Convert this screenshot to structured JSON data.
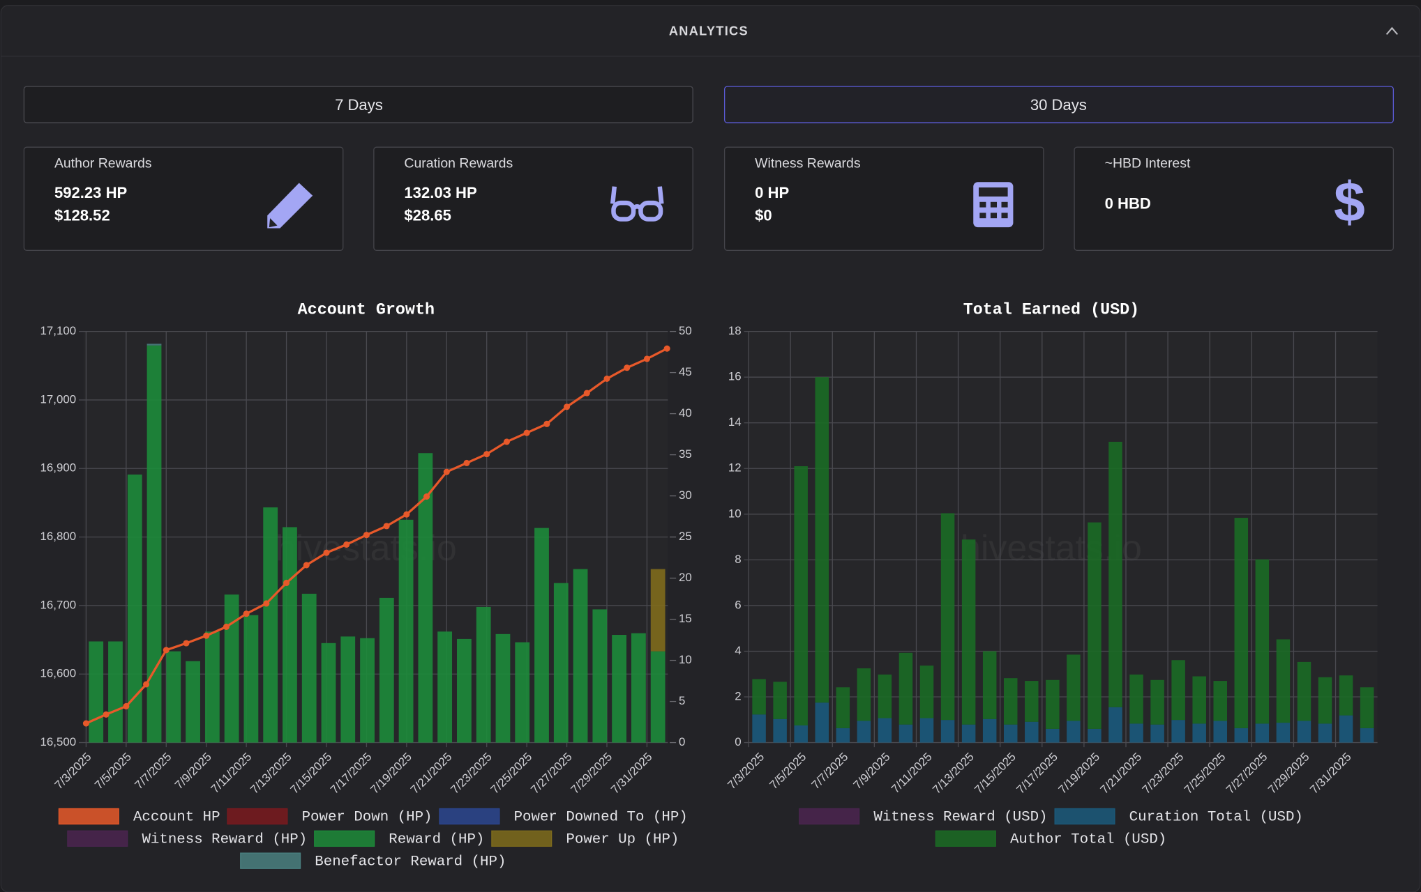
{
  "header": {
    "title": "ANALYTICS"
  },
  "tabs": [
    "7 Days",
    "30 Days"
  ],
  "cards": [
    {
      "label": "Author Rewards",
      "lines": [
        "592.23 HP",
        "$128.52"
      ]
    },
    {
      "label": "Curation Rewards",
      "lines": [
        "132.03 HP",
        "$28.65"
      ]
    },
    {
      "label": "Witness Rewards",
      "lines": [
        "0 HP",
        "$0"
      ]
    },
    {
      "label": "~HBD Interest",
      "lines": [
        "0 HBD"
      ]
    }
  ],
  "watermark": "hivestats.io",
  "chart_data": [
    {
      "type": "combo",
      "title": "Account Growth",
      "categories": [
        "7/3/2025",
        null,
        "7/5/2025",
        null,
        "7/7/2025",
        null,
        "7/9/2025",
        null,
        "7/11/2025",
        null,
        "7/13/2025",
        null,
        "7/15/2025",
        null,
        "7/17/2025",
        null,
        "7/19/2025",
        null,
        "7/21/2025",
        null,
        "7/23/2025",
        null,
        "7/25/2025",
        null,
        "7/27/2025",
        null,
        "7/29/2025",
        null,
        "7/31/2025",
        null
      ],
      "ylim": [
        16500,
        17100
      ],
      "yticks": [
        {
          "value": 16500,
          "label": "16,500"
        },
        {
          "value": 16600,
          "label": "16,600"
        },
        {
          "value": 16700,
          "label": "16,700"
        },
        {
          "value": 16800,
          "label": "16,800"
        },
        {
          "value": 16900,
          "label": "16,900"
        },
        {
          "value": 17000,
          "label": "17,000"
        },
        {
          "value": 17100,
          "label": "17,100"
        }
      ],
      "y2lim": [
        0,
        50
      ],
      "y2ticks": [
        0,
        5,
        10,
        15,
        20,
        25,
        30,
        35,
        40,
        45,
        50
      ],
      "grid": true,
      "legend": "bottom",
      "series": [
        {
          "name": "Account HP",
          "kind": "line",
          "color": "#e8592a",
          "values": [
            16528,
            16541,
            16553,
            16585,
            16635,
            16645,
            16656,
            16669,
            16688,
            16703,
            16733,
            16759,
            16777,
            16789,
            16803,
            16816,
            16833,
            16859,
            16895,
            16908,
            16921,
            16939,
            16952,
            16965,
            16990,
            17010,
            17031,
            17047,
            17060,
            17075
          ]
        },
        {
          "name": "Power Down (HP)",
          "kind": "bar",
          "axis": "y2",
          "color": "#7a1a1f",
          "values": [
            0,
            0,
            0,
            0,
            0,
            0,
            0,
            0,
            0,
            0,
            0,
            0,
            0,
            0,
            0,
            0,
            0,
            0,
            0,
            0,
            0,
            0,
            0,
            0,
            0,
            0,
            0,
            0,
            0,
            0
          ]
        },
        {
          "name": "Power Downed To (HP)",
          "kind": "bar",
          "axis": "y2",
          "color": "#2c4690",
          "values": [
            0,
            0,
            0,
            0,
            0,
            0,
            0,
            0,
            0,
            0,
            0,
            0,
            0,
            0,
            0,
            0,
            0,
            0,
            0,
            0,
            0,
            0,
            0,
            0,
            0,
            0,
            0,
            0,
            0,
            0
          ]
        },
        {
          "name": "Witness Reward (HP)",
          "kind": "bar",
          "axis": "y2",
          "color": "#4b2550",
          "values": [
            0,
            0,
            0,
            0,
            0,
            0,
            0,
            0,
            0,
            0,
            0,
            0,
            0,
            0,
            0,
            0,
            0,
            0,
            0,
            0,
            0,
            0,
            0,
            0,
            0,
            0,
            0,
            0,
            0,
            0
          ]
        },
        {
          "name": "Reward (HP)",
          "kind": "bar",
          "axis": "y2",
          "color": "#1d8b3a",
          "values": [
            12.3,
            12.3,
            32.6,
            48.3,
            11.1,
            9.9,
            13.5,
            18.0,
            15.5,
            28.6,
            26.2,
            18.1,
            12.1,
            12.9,
            12.7,
            17.6,
            27.1,
            35.2,
            13.5,
            12.6,
            16.5,
            13.2,
            12.2,
            26.1,
            19.4,
            21.1,
            16.2,
            13.1,
            13.3,
            11.1
          ]
        },
        {
          "name": "Power Up (HP)",
          "kind": "bar",
          "axis": "y2",
          "color": "#7f6c1c",
          "values": [
            0,
            0,
            0,
            0,
            0,
            0,
            0,
            0,
            0,
            0,
            0,
            0,
            0,
            0,
            0,
            0,
            0,
            0,
            0,
            0,
            0,
            0,
            0,
            0,
            0,
            0,
            0,
            0,
            0,
            10.0
          ]
        },
        {
          "name": "Benefactor Reward (HP)",
          "kind": "bar",
          "axis": "y2",
          "color": "#4a8080",
          "values": [
            0,
            0,
            0,
            0.2,
            0,
            0,
            0,
            0,
            0,
            0,
            0,
            0,
            0,
            0,
            0,
            0,
            0,
            0,
            0,
            0,
            0,
            0,
            0,
            0,
            0,
            0,
            0,
            0,
            0,
            0
          ]
        }
      ]
    },
    {
      "type": "stacked_bar",
      "title": "Total Earned (USD)",
      "categories": [
        "7/3/2025",
        null,
        "7/5/2025",
        null,
        "7/7/2025",
        null,
        "7/9/2025",
        null,
        "7/11/2025",
        null,
        "7/13/2025",
        null,
        "7/15/2025",
        null,
        "7/17/2025",
        null,
        "7/19/2025",
        null,
        "7/21/2025",
        null,
        "7/23/2025",
        null,
        "7/25/2025",
        null,
        "7/27/2025",
        null,
        "7/29/2025",
        null,
        "7/31/2025",
        null
      ],
      "ylim": [
        0,
        18
      ],
      "yticks": [
        0,
        2,
        4,
        6,
        8,
        10,
        12,
        14,
        16,
        18
      ],
      "grid": true,
      "legend": "bottom",
      "series": [
        {
          "name": "Witness Reward (USD)",
          "kind": "bar",
          "color": "#4b2550",
          "values": [
            0,
            0,
            0,
            0,
            0,
            0,
            0,
            0,
            0,
            0,
            0,
            0,
            0,
            0,
            0,
            0,
            0,
            0,
            0,
            0,
            0,
            0,
            0,
            0,
            0,
            0,
            0,
            0,
            0,
            0
          ]
        },
        {
          "name": "Curation Total (USD)",
          "kind": "bar",
          "color": "#1b5a7c",
          "values": [
            1.23,
            1.03,
            0.75,
            1.75,
            0.63,
            0.95,
            1.07,
            0.79,
            1.07,
            0.99,
            0.79,
            1.03,
            0.79,
            0.91,
            0.6,
            0.95,
            0.6,
            1.55,
            0.83,
            0.79,
            0.99,
            0.83,
            0.95,
            0.63,
            0.83,
            0.87,
            0.95,
            0.83,
            1.19,
            0.63
          ]
        },
        {
          "name": "Author Total (USD)",
          "kind": "bar",
          "color": "#1b6c25",
          "values": [
            1.55,
            1.63,
            11.35,
            14.25,
            1.79,
            2.3,
            1.91,
            3.14,
            2.3,
            9.05,
            8.1,
            2.97,
            2.03,
            1.79,
            2.14,
            2.9,
            9.04,
            11.62,
            2.15,
            1.95,
            2.62,
            2.07,
            1.75,
            9.21,
            7.19,
            3.65,
            2.58,
            2.03,
            1.75,
            1.79
          ]
        }
      ]
    }
  ]
}
